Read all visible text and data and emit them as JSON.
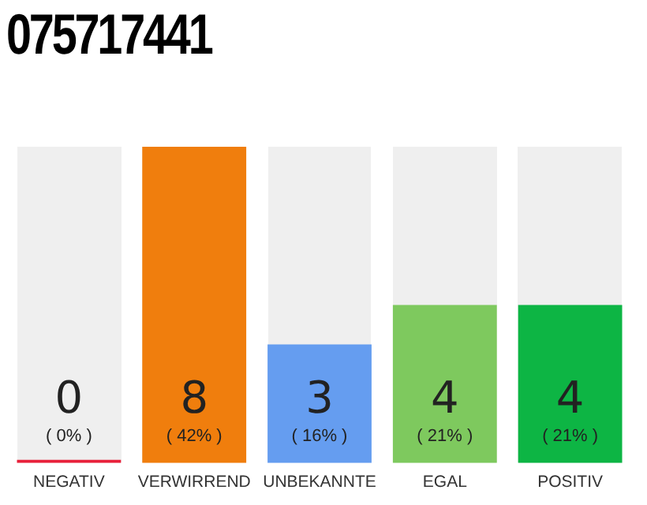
{
  "chart_data": {
    "type": "bar",
    "title": "075717441",
    "categories": [
      "NEGATIV",
      "VERWIRREND",
      "UNBEKANNTE",
      "EGAL",
      "POSITIV"
    ],
    "values": [
      0,
      8,
      3,
      4,
      4
    ],
    "colors": [
      "#e8203a",
      "#f07e0d",
      "#659df0",
      "#7ec95e",
      "#0db544"
    ],
    "value_labels": [
      "0\n( 0% )",
      "8\n( 42% )",
      "3\n( 16% )",
      "4\n( 21% )",
      "4\n( 21% )"
    ],
    "grid": false,
    "legend": false
  }
}
